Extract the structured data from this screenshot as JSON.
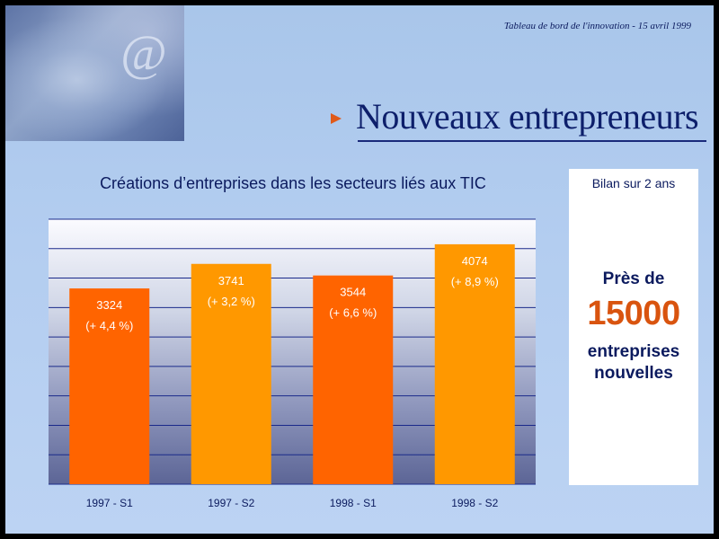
{
  "header": {
    "caption": "Tableau de bord de l'innovation - 15 avril 1999",
    "title": "Nouveaux entrepreneurs"
  },
  "colors": {
    "bar_dark": "#ff6400",
    "bar_light": "#ff9800",
    "title_navy": "#0d1f6b",
    "highlight_orange": "#d9540f"
  },
  "chart_data": {
    "type": "bar",
    "title": "Créations d’entreprises dans les secteurs liés aux TIC",
    "categories": [
      "1997 - S1",
      "1997 - S2",
      "1998 - S1",
      "1998 - S2"
    ],
    "values": [
      3324,
      3741,
      3544,
      4074
    ],
    "value_labels": [
      "3324",
      "3741",
      "3544",
      "4074"
    ],
    "growth_labels": [
      "(+ 4,4 %)",
      "(+ 3,2 %)",
      "(+ 6,6 %)",
      "(+ 8,9 %)"
    ],
    "ylim": [
      0,
      4500
    ],
    "grid": true,
    "xlabel": "",
    "ylabel": ""
  },
  "summary": {
    "heading": "Bilan sur 2 ans",
    "pre": "Près de",
    "number": "15000",
    "post_line1": "entreprises",
    "post_line2": "nouvelles"
  }
}
